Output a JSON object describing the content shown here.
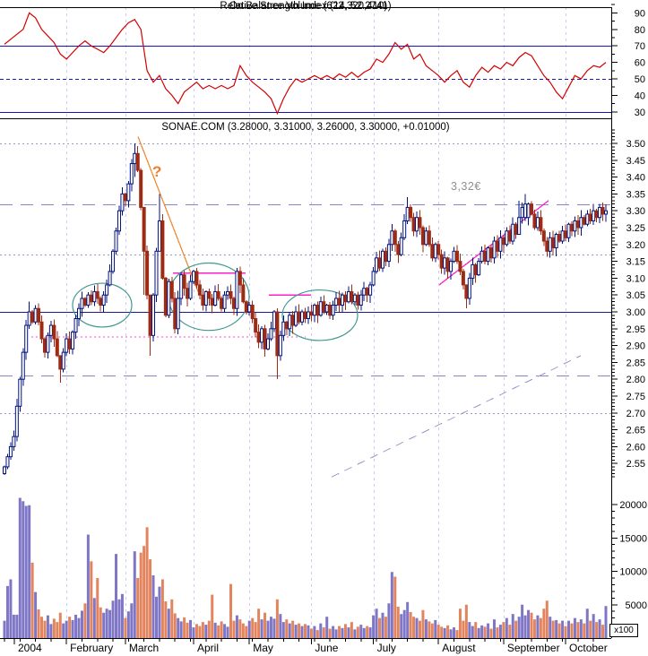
{
  "titles": {
    "indicator_overlap_a": "Relative Strength Index (14, 52.2741)",
    "indicator_overlap_b": "On Balance Volume (622,320,410)",
    "main": "SONAE.COM (3.28000, 3.31000, 3.26000, 3.30000, +0.01000)",
    "volume_unit": "x100"
  },
  "annotations": {
    "price_label": "3,32€",
    "question_mark": "?"
  },
  "colors": {
    "rsi_line": "#d40000",
    "guide_blue": "#1515bb",
    "candle_up_stroke": "#00127f",
    "candle_down_fill": "#9e2b14",
    "volume_up": "#7f76c6",
    "volume_down": "#e2855f",
    "level_longdash": "#8585c8",
    "level_navy": "#1a1a90",
    "grid_dotted": "#9a9ac0",
    "month_grid": "#ccccf2",
    "magenta": "#ff22cc",
    "magenta_dotted": "#ff44cc",
    "orange": "#ef8c3a",
    "teal": "#3f988f",
    "gray_diag": "#9a97c9",
    "axis": "#000000",
    "gray_text": "#8f8f8f"
  },
  "x_axis": {
    "month_labels": [
      "2004",
      "February",
      "March",
      "April",
      "May",
      "June",
      "July",
      "August",
      "September",
      "October"
    ],
    "month_start_index": [
      0,
      20,
      39,
      61,
      79,
      99,
      119,
      140,
      161,
      181
    ],
    "candles_total": 195
  },
  "chart_data": [
    {
      "type": "line",
      "name": "Relative Strength Index",
      "panel": "rsi",
      "ylim": [
        25,
        95
      ],
      "yticks": [
        30,
        40,
        50,
        60,
        70,
        80,
        90
      ],
      "guides": [
        {
          "value": 70,
          "style": "solid"
        },
        {
          "value": 50,
          "style": "dashed"
        },
        {
          "value": 30,
          "style": "solid"
        }
      ],
      "sample_step": 2,
      "values": [
        71,
        74,
        77,
        80,
        90,
        87,
        80,
        76,
        72,
        65,
        62,
        66,
        70,
        73,
        70,
        68,
        66,
        70,
        75,
        80,
        84,
        86,
        80,
        55,
        48,
        52,
        44,
        40,
        35,
        42,
        45,
        48,
        44,
        46,
        44,
        46,
        44,
        46,
        58,
        52,
        48,
        45,
        42,
        38,
        29,
        38,
        45,
        50,
        48,
        50,
        52,
        50,
        52,
        50,
        53,
        51,
        54,
        51,
        54,
        56,
        62,
        60,
        65,
        72,
        68,
        71,
        62,
        65,
        58,
        55,
        52,
        48,
        52,
        55,
        48,
        45,
        52,
        57,
        54,
        58,
        56,
        60,
        58,
        63,
        66,
        64,
        58,
        52,
        48,
        42,
        38,
        45,
        52,
        50,
        55,
        58,
        57,
        60
      ]
    },
    {
      "type": "candlestick",
      "name": "SONAE.COM",
      "panel": "price",
      "ylim": [
        2.5,
        3.55
      ],
      "yticks": [
        2.55,
        2.6,
        2.65,
        2.7,
        2.75,
        2.8,
        2.85,
        2.9,
        2.95,
        3.0,
        3.05,
        3.1,
        3.15,
        3.2,
        3.25,
        3.3,
        3.35,
        3.4,
        3.45,
        3.5
      ],
      "last_ohlc": {
        "open": 3.28,
        "high": 3.31,
        "low": 3.26,
        "close": 3.3,
        "change": 0.01
      },
      "closes": [
        2.54,
        2.57,
        2.6,
        2.63,
        2.72,
        2.8,
        2.88,
        2.96,
        3.0,
        2.97,
        3.01,
        2.97,
        2.92,
        2.88,
        2.93,
        2.96,
        2.92,
        2.87,
        2.83,
        2.88,
        2.92,
        2.89,
        2.94,
        2.98,
        3.01,
        3.04,
        3.02,
        3.05,
        3.03,
        3.06,
        3.04,
        3.02,
        3.05,
        3.08,
        3.12,
        3.18,
        3.24,
        3.3,
        3.35,
        3.33,
        3.38,
        3.44,
        3.47,
        3.42,
        3.31,
        3.18,
        3.05,
        2.93,
        3.05,
        3.18,
        3.27,
        3.1,
        2.99,
        3.09,
        3.04,
        2.95,
        3.04,
        3.11,
        3.07,
        3.04,
        3.09,
        3.12,
        3.08,
        3.05,
        3.02,
        3.06,
        3.04,
        3.02,
        3.06,
        3.04,
        3.01,
        3.05,
        3.06,
        3.04,
        3.01,
        3.12,
        3.08,
        3.03,
        3.0,
        3.02,
        2.98,
        2.94,
        2.91,
        2.95,
        2.89,
        2.92,
        2.95,
        3.0,
        2.87,
        2.93,
        2.97,
        2.95,
        2.99,
        2.96,
        3.0,
        2.97,
        3.0,
        2.98,
        3.0,
        2.99,
        3.02,
        2.99,
        3.03,
        3.0,
        3.02,
        2.99,
        3.02,
        3.04,
        3.02,
        3.05,
        3.03,
        3.06,
        3.03,
        3.05,
        3.02,
        3.05,
        3.07,
        3.05,
        3.08,
        3.12,
        3.16,
        3.13,
        3.18,
        3.15,
        3.2,
        3.24,
        3.2,
        3.17,
        3.22,
        3.27,
        3.31,
        3.28,
        3.24,
        3.28,
        3.25,
        3.2,
        3.24,
        3.2,
        3.16,
        3.2,
        3.17,
        3.13,
        3.16,
        3.12,
        3.15,
        3.18,
        3.15,
        3.12,
        3.08,
        3.04,
        3.1,
        3.14,
        3.11,
        3.15,
        3.18,
        3.15,
        3.19,
        3.16,
        3.21,
        3.18,
        3.22,
        3.2,
        3.24,
        3.21,
        3.26,
        3.23,
        3.28,
        3.31,
        3.28,
        3.32,
        3.29,
        3.25,
        3.28,
        3.24,
        3.21,
        3.18,
        3.22,
        3.19,
        3.23,
        3.21,
        3.24,
        3.22,
        3.26,
        3.24,
        3.27,
        3.25,
        3.28,
        3.26,
        3.29,
        3.27,
        3.3,
        3.28,
        3.31,
        3.29,
        3.3
      ],
      "ohlc_overrides": {
        "8": [
          2.96,
          3.03,
          2.95,
          3.0
        ],
        "18": [
          2.87,
          2.87,
          2.79,
          2.83
        ],
        "42": [
          3.44,
          3.5,
          3.4,
          3.47
        ],
        "45": [
          3.31,
          3.31,
          3.05,
          3.18
        ],
        "47": [
          3.05,
          3.05,
          2.87,
          2.93
        ],
        "50": [
          3.18,
          3.35,
          3.18,
          3.27
        ],
        "88": [
          3.0,
          3.01,
          2.8,
          2.87
        ],
        "130": [
          3.27,
          3.34,
          3.26,
          3.31
        ],
        "149": [
          3.08,
          3.08,
          3.01,
          3.04
        ],
        "166": [
          3.23,
          3.33,
          3.23,
          3.28
        ],
        "168": [
          3.28,
          3.35,
          3.27,
          3.32
        ]
      },
      "levels": [
        {
          "price": 3.5,
          "style": "dotted",
          "color": "grid_dotted"
        },
        {
          "price": 3.32,
          "style": "longdash",
          "color": "level_longdash"
        },
        {
          "price": 3.17,
          "style": "dotted",
          "color": "grid_dotted"
        },
        {
          "price": 3.0,
          "style": "solid",
          "color": "level_navy"
        },
        {
          "price": 2.81,
          "style": "longdash",
          "color": "level_longdash"
        },
        {
          "price": 2.7,
          "style": "dotted",
          "color": "grid_dotted"
        }
      ],
      "segments": [
        {
          "x1": 35,
          "price1": 2.925,
          "x2": 341,
          "price2": 2.925,
          "style": "dotted",
          "color": "magenta_dotted"
        },
        {
          "x1": 193,
          "price1": 3.115,
          "x2": 274,
          "price2": 3.115,
          "style": "solid",
          "color": "magenta"
        },
        {
          "x1": 300,
          "price1": 3.05,
          "x2": 347,
          "price2": 3.05,
          "style": "solid",
          "color": "magenta"
        },
        {
          "x1": 490,
          "price1": 3.08,
          "x2": 612,
          "price2": 3.33,
          "style": "solid",
          "color": "magenta"
        },
        {
          "x1": 154,
          "price1": 3.52,
          "x2": 221,
          "price2": 3.06,
          "style": "solid",
          "color": "orange"
        },
        {
          "x1": 370,
          "price1": 2.51,
          "x2": 648,
          "price2": 2.87,
          "style": "dashed",
          "color": "gray_diag"
        }
      ],
      "ellipses": [
        {
          "cx": 114,
          "cprice": 3.02,
          "rx": 33,
          "rprice": 0.065
        },
        {
          "cx": 233,
          "cprice": 3.045,
          "rx": 45,
          "rprice": 0.1
        },
        {
          "cx": 357,
          "cprice": 2.99,
          "rx": 42,
          "rprice": 0.075
        }
      ],
      "text_annotations": [
        {
          "text": "3,32€",
          "x": 505,
          "price": 3.4
        },
        {
          "text": "?",
          "x": 176,
          "price": 3.44
        }
      ]
    },
    {
      "type": "bar",
      "name": "Volume",
      "panel": "volume",
      "unit": "x100",
      "ylim": [
        0,
        21000
      ],
      "yticks": [
        5000,
        10000,
        15000,
        20000
      ],
      "values": [
        2600,
        7800,
        8800,
        3500,
        3500,
        21000,
        20500,
        19800,
        19900,
        11300,
        6900,
        4300,
        3200,
        2600,
        3400,
        2100,
        2900,
        2400,
        3800,
        2200,
        2600,
        3200,
        2700,
        3500,
        3000,
        4100,
        5200,
        15500,
        11500,
        6000,
        9000,
        4600,
        3800,
        4400,
        4200,
        5600,
        12600,
        5800,
        6600,
        3000,
        4000,
        5200,
        13000,
        9000,
        12800,
        13800,
        16600,
        11800,
        9400,
        6200,
        7700,
        8800,
        5500,
        4400,
        5800,
        3700,
        3000,
        2500,
        3100,
        2300,
        2700,
        1600,
        2100,
        1800,
        2400,
        2000,
        2600,
        6500,
        2300,
        1900,
        2500,
        2100,
        1700,
        8100,
        2600,
        3400,
        2800,
        2200,
        1800,
        2600,
        3000,
        2400,
        4400,
        2800,
        3800,
        2600,
        3200,
        2900,
        5800,
        3600,
        2400,
        2800,
        2200,
        2600,
        2000,
        2200,
        1800,
        2100,
        1900,
        1400,
        1800,
        1200,
        2200,
        1600,
        3200,
        1400,
        1800,
        1300,
        1800,
        1500,
        2100,
        1600,
        2400,
        1300,
        1700,
        2000,
        1500,
        1800,
        1600,
        3400,
        4400,
        3000,
        3800,
        3200,
        5200,
        9900,
        9200,
        4700,
        3600,
        4200,
        5400,
        3900,
        3200,
        3000,
        2600,
        4200,
        2800,
        2500,
        2200,
        2700,
        2000,
        1700,
        1500,
        1900,
        1300,
        1600,
        1200,
        4400,
        2600,
        5000,
        2400,
        1800,
        2400,
        1500,
        1900,
        1700,
        2200,
        1400,
        2800,
        1600,
        2000,
        2400,
        3000,
        2000,
        3600,
        2600,
        3200,
        5000,
        3400,
        4200,
        3800,
        2800,
        3400,
        3000,
        4400,
        5600,
        3200,
        2600,
        2700,
        2200,
        2600,
        1800,
        2600,
        2200,
        3000,
        2400,
        2800,
        2200,
        4400,
        2600,
        3600,
        2400,
        2800,
        2000,
        4800
      ]
    }
  ]
}
